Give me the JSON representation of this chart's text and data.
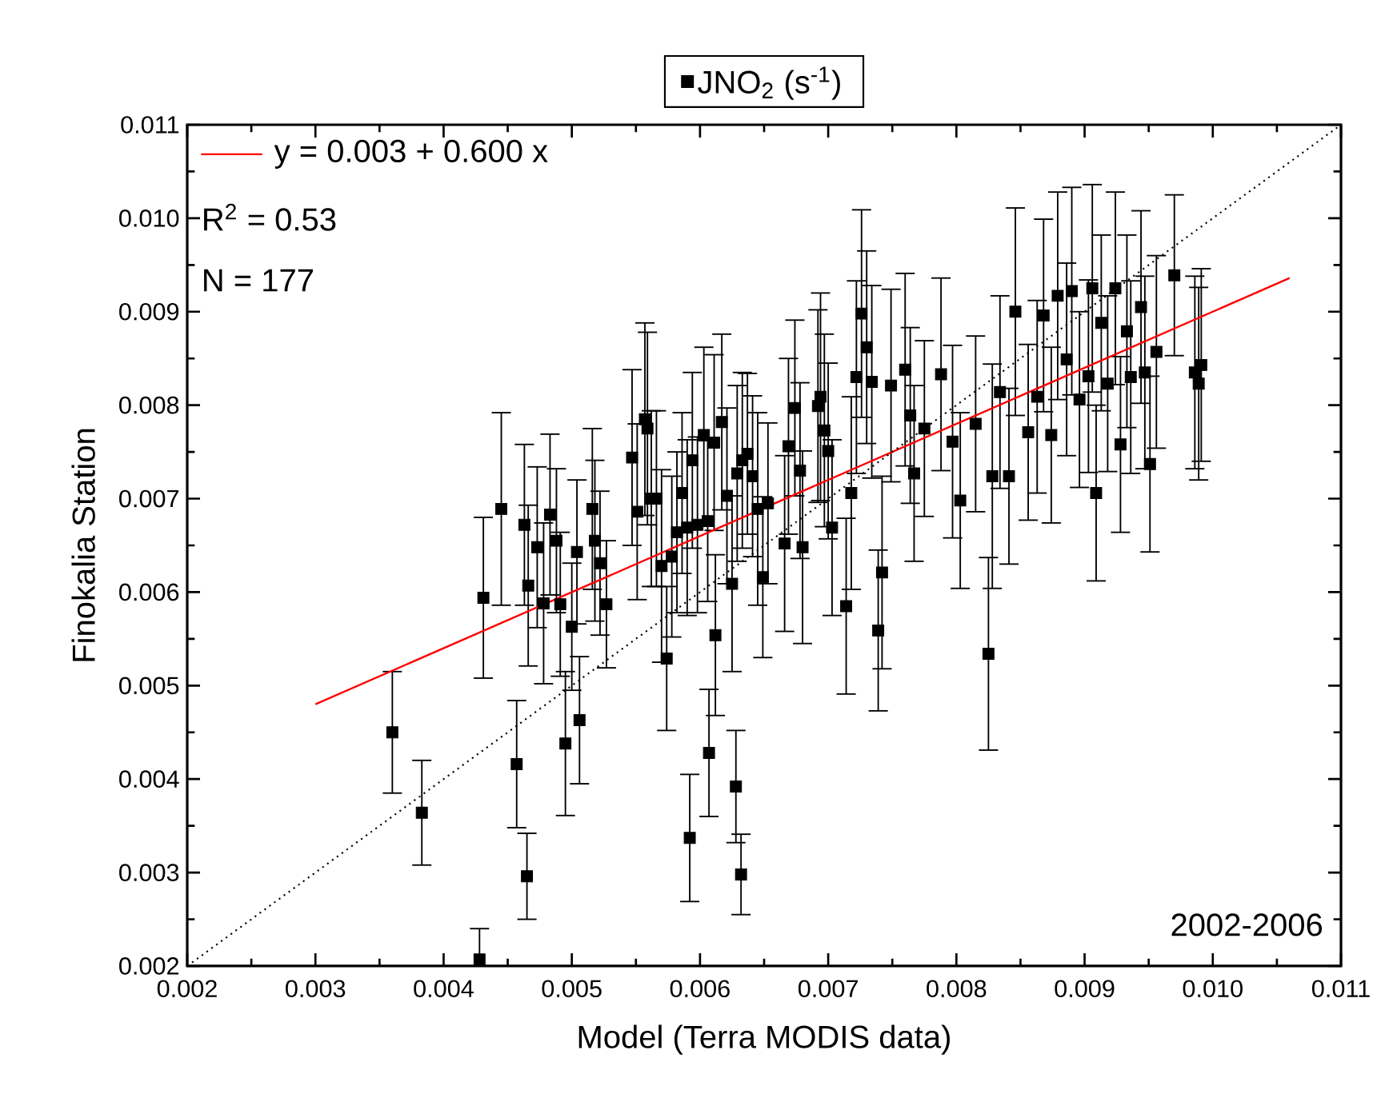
{
  "chart_data": {
    "type": "scatter",
    "xlabel": "Model (Terra MODIS data)",
    "ylabel": "Finokalia Station",
    "xlim": [
      0.002,
      0.011
    ],
    "ylim": [
      0.002,
      0.011
    ],
    "xticks": [
      0.002,
      0.003,
      0.004,
      0.005,
      0.006,
      0.007,
      0.008,
      0.009,
      {
        "value": 0.01,
        "label": "0.010"
      },
      0.011
    ],
    "yticks": [
      0.002,
      0.003,
      0.004,
      0.005,
      0.006,
      0.007,
      0.008,
      0.009,
      {
        "value": 0.01,
        "label": "0.010"
      },
      0.011
    ],
    "legend": "top",
    "grid": false,
    "annotations": [
      "R$^{2}$ = 0.53",
      "N = 177",
      "2002-2006"
    ],
    "series": [
      {
        "name": "JNO$_{2}$ (s$^{-1}$)",
        "marker": "square",
        "color": "#000000",
        "x": [
          0.0036,
          0.00383,
          0.00428,
          0.00431,
          0.00445,
          0.00457,
          0.00465,
          0.00463,
          0.00466,
          0.00473,
          0.00478,
          0.00483,
          0.00488,
          0.00491,
          0.00495,
          0.005,
          0.00504,
          0.00506,
          0.00516,
          0.00518,
          0.00522,
          0.00527,
          0.00547,
          0.00551,
          0.00557,
          0.00559,
          0.00562,
          0.00566,
          0.0057,
          0.00574,
          0.00578,
          0.00582,
          0.00586,
          0.0059,
          0.00592,
          0.00594,
          0.00598,
          0.00603,
          0.00606,
          0.00607,
          0.00612,
          0.00611,
          0.00617,
          0.00621,
          0.00625,
          0.00629,
          0.00633,
          0.00628,
          0.00632,
          0.00637,
          0.00641,
          0.00645,
          0.00649,
          0.00653,
          0.00669,
          0.00666,
          0.00674,
          0.00678,
          0.0068,
          0.00692,
          0.00694,
          0.00697,
          0.007,
          0.00703,
          0.00714,
          0.00718,
          0.00722,
          0.00726,
          0.0073,
          0.00734,
          0.00739,
          0.00742,
          0.00749,
          0.0076,
          0.00764,
          0.00767,
          0.00775,
          0.00788,
          0.00797,
          0.00803,
          0.00815,
          0.00825,
          0.00828,
          0.00834,
          0.00841,
          0.00846,
          0.00856,
          0.00863,
          0.00868,
          0.00874,
          0.00879,
          0.00886,
          0.0089,
          0.00896,
          0.00903,
          0.00906,
          0.00913,
          0.00918,
          0.00924,
          0.00928,
          0.00933,
          0.00936,
          0.00944,
          0.00947,
          0.00951,
          0.00956,
          0.0097,
          0.00986,
          0.00989,
          0.00991,
          0.00909
        ],
        "values": [
          0.0045,
          0.00364,
          0.00207,
          0.00594,
          0.00689,
          0.00416,
          0.00296,
          0.00672,
          0.00607,
          0.00648,
          0.00588,
          0.00683,
          0.00655,
          0.00587,
          0.00438,
          0.00563,
          0.00643,
          0.00463,
          0.00689,
          0.00655,
          0.00631,
          0.00587,
          0.00744,
          0.00686,
          0.00785,
          0.00775,
          0.007,
          0.007,
          0.00628,
          0.00529,
          0.00638,
          0.00664,
          0.00706,
          0.00669,
          0.00337,
          0.00741,
          0.00672,
          0.00768,
          0.00676,
          0.00428,
          0.00554,
          0.0076,
          0.00782,
          0.00703,
          0.00609,
          0.00727,
          0.00741,
          0.00392,
          0.00298,
          0.00748,
          0.00724,
          0.00689,
          0.00616,
          0.00695,
          0.00756,
          0.00652,
          0.00797,
          0.0073,
          0.00648,
          0.00799,
          0.00809,
          0.00773,
          0.00751,
          0.00669,
          0.00585,
          0.00706,
          0.0083,
          0.00898,
          0.00862,
          0.00825,
          0.00559,
          0.00621,
          0.00821,
          0.00838,
          0.00789,
          0.00727,
          0.00775,
          0.00833,
          0.00761,
          0.00698,
          0.0078,
          0.00534,
          0.00724,
          0.00814,
          0.00724,
          0.009,
          0.00771,
          0.00809,
          0.00896,
          0.00768,
          0.00917,
          0.00849,
          0.00922,
          0.00806,
          0.00831,
          0.00925,
          0.00888,
          0.00823,
          0.00925,
          0.00758,
          0.00879,
          0.0083,
          0.00905,
          0.00835,
          0.00737,
          0.00857,
          0.00939,
          0.00835,
          0.00823,
          0.00843,
          0.00706
        ],
        "errors": [
          0.00065,
          0.00056,
          [
            0.002,
            0.0024
          ],
          0.00086,
          0.00103,
          0.00068,
          0.00046,
          0.00086,
          0.00086,
          0.00086,
          0.00086,
          0.00086,
          0.00077,
          0.00077,
          0.00077,
          0.00068,
          0.00077,
          0.00068,
          0.00086,
          0.00086,
          0.00077,
          0.00068,
          0.00094,
          0.00094,
          0.00103,
          0.00103,
          0.00094,
          0.00094,
          0.00103,
          0.00077,
          0.00086,
          0.00086,
          0.00086,
          0.00094,
          0.00068,
          0.00094,
          0.00094,
          0.00094,
          0.00086,
          0.00068,
          0.00086,
          0.00094,
          0.00094,
          0.00094,
          0.00094,
          0.00094,
          0.00094,
          0.0006,
          0.00043,
          0.00086,
          0.00086,
          0.00103,
          0.00086,
          0.00086,
          0.00094,
          0.00094,
          0.00094,
          0.00094,
          0.00103,
          0.00103,
          0.00111,
          0.00103,
          0.00094,
          0.00094,
          0.00094,
          0.00103,
          0.00103,
          0.00111,
          0.00103,
          0.00103,
          0.00086,
          0.00103,
          0.00103,
          0.00103,
          0.00094,
          0.00094,
          0.00094,
          0.00103,
          0.00103,
          0.00094,
          0.00094,
          0.00103,
          0.0012,
          0.00103,
          0.00094,
          0.00111,
          0.00094,
          0.00103,
          0.00103,
          0.00094,
          0.00111,
          0.00103,
          0.00111,
          0.00094,
          0.00103,
          0.00111,
          0.00094,
          0.00094,
          0.00103,
          0.00094,
          0.00103,
          0.00103,
          0.00103,
          0.00103,
          0.00094,
          0.00103,
          0.00086,
          0.00103,
          0.00103,
          0.00103,
          0.00094
        ]
      },
      {
        "name": "y = 0.003 + 0.600 x",
        "type": "line",
        "color": "#ff0000",
        "line_style": "solid",
        "x": [
          0.003,
          0.0106
        ],
        "values": [
          0.0048,
          0.00936
        ]
      },
      {
        "type": "line",
        "color": "#000000",
        "line_style": "dotted",
        "x": [
          0.002,
          0.011
        ],
        "values": [
          0.002,
          0.011
        ]
      }
    ]
  }
}
